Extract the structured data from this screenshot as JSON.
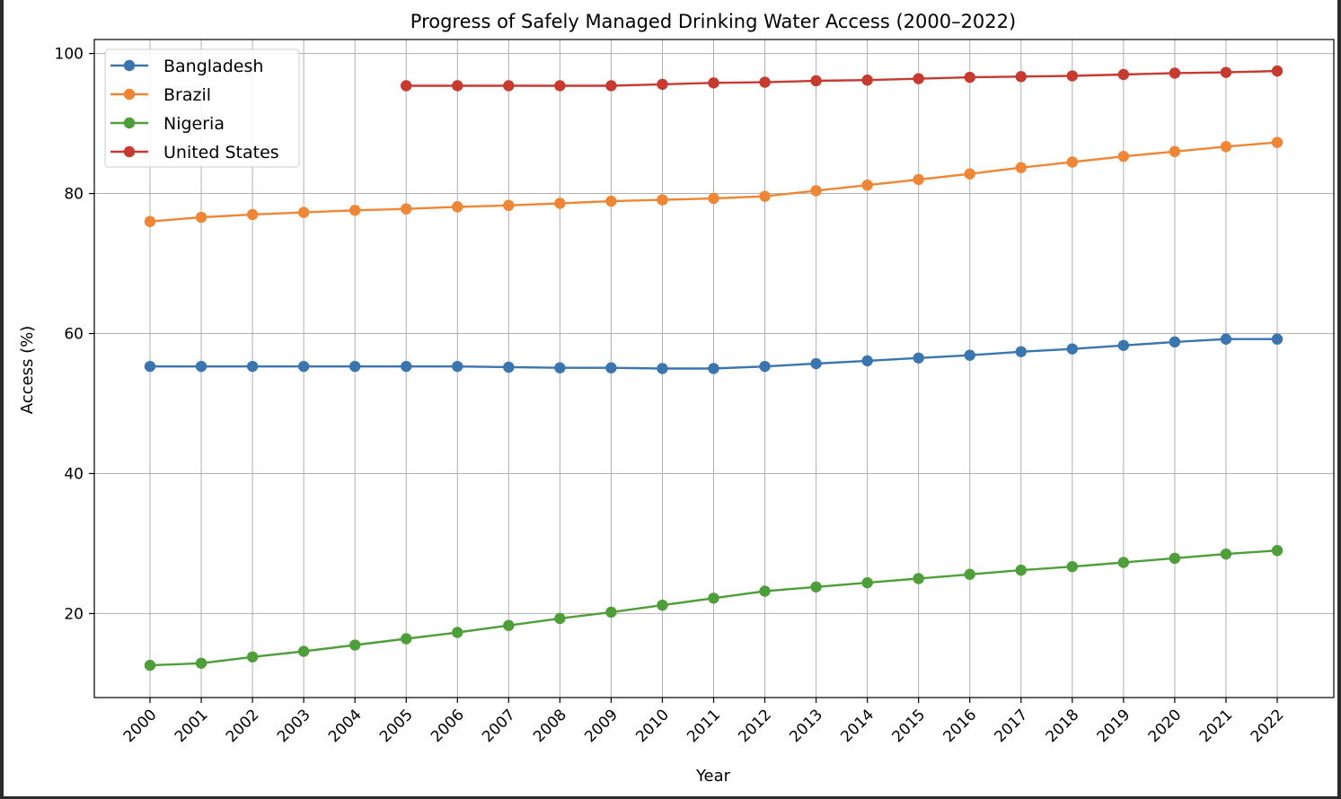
{
  "chart_data": {
    "type": "line",
    "title": "Progress of Safely Managed Drinking Water Access (2000–2022)",
    "xlabel": "Year",
    "ylabel": "Access (%)",
    "x": [
      "2000",
      "2001",
      "2002",
      "2003",
      "2004",
      "2005",
      "2006",
      "2007",
      "2008",
      "2009",
      "2010",
      "2011",
      "2012",
      "2013",
      "2014",
      "2015",
      "2016",
      "2017",
      "2018",
      "2019",
      "2020",
      "2021",
      "2022"
    ],
    "ylim": [
      8.0,
      102.0
    ],
    "yticks": [
      20,
      40,
      60,
      80,
      100
    ],
    "grid": true,
    "legend_position": "top-left",
    "series": [
      {
        "name": "Bangladesh",
        "color": "#3a75b0",
        "values": [
          55.3,
          55.3,
          55.3,
          55.3,
          55.3,
          55.3,
          55.3,
          55.2,
          55.1,
          55.1,
          55.0,
          55.0,
          55.3,
          55.7,
          56.1,
          56.5,
          56.9,
          57.4,
          57.8,
          58.3,
          58.8,
          59.2,
          59.2
        ]
      },
      {
        "name": "Brazil",
        "color": "#ef8636",
        "values": [
          76.0,
          76.6,
          77.0,
          77.3,
          77.6,
          77.8,
          78.1,
          78.3,
          78.6,
          78.9,
          79.1,
          79.3,
          79.6,
          80.4,
          81.2,
          82.0,
          82.8,
          83.7,
          84.5,
          85.3,
          86.0,
          86.7,
          87.3
        ]
      },
      {
        "name": "Nigeria",
        "color": "#4e9e3a",
        "values": [
          12.6,
          12.9,
          13.8,
          14.6,
          15.5,
          16.4,
          17.3,
          18.3,
          19.3,
          20.2,
          21.2,
          22.2,
          23.2,
          23.8,
          24.4,
          25.0,
          25.6,
          26.2,
          26.7,
          27.3,
          27.9,
          28.5,
          29.0
        ]
      },
      {
        "name": "United States",
        "color": "#c63a30",
        "values": [
          null,
          null,
          null,
          null,
          null,
          95.4,
          95.4,
          95.4,
          95.4,
          95.4,
          95.6,
          95.8,
          95.9,
          96.1,
          96.2,
          96.4,
          96.6,
          96.7,
          96.8,
          97.0,
          97.2,
          97.3,
          97.5
        ]
      }
    ]
  }
}
